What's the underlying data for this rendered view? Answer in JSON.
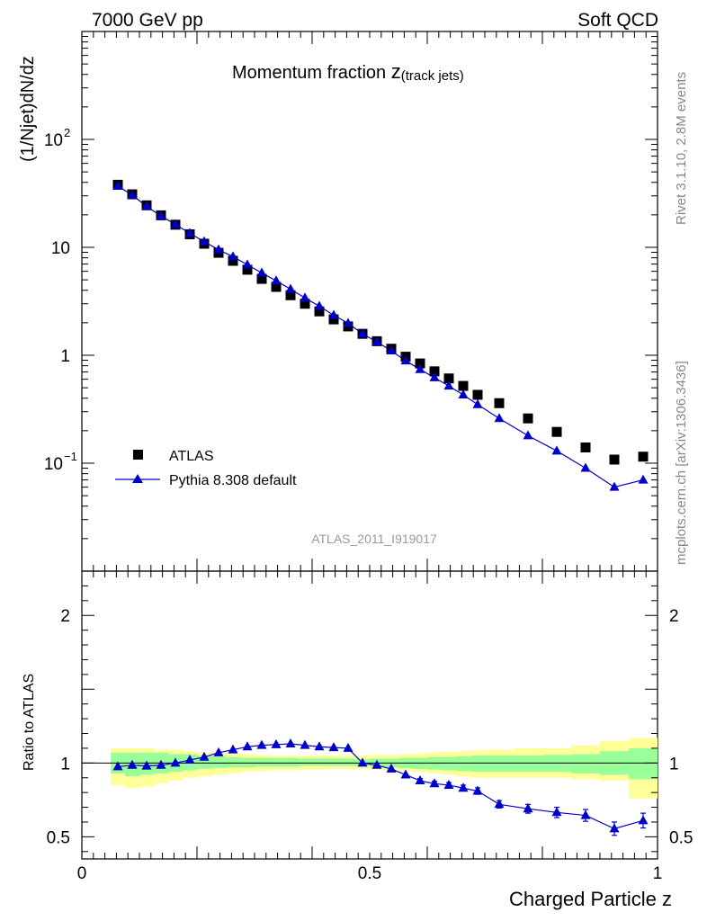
{
  "header": {
    "left": "7000 GeV pp",
    "right": "Soft QCD"
  },
  "side": {
    "rivet": "Rivet 3.1.10,  2.8M events",
    "mcplots": "mcplots.cern.ch [arXiv:1306.3436]"
  },
  "chart_data": {
    "type": "scatter",
    "title_main": "Momentum fraction ",
    "title_var": "z",
    "title_sub": "(track jets)",
    "ylabel": "(1/Njet)dN/dz",
    "xlabel": "Charged Particle z",
    "watermark": "ATLAS_2011_I919017",
    "xlim": [
      0,
      1
    ],
    "ylim_main": [
      0.01,
      1000
    ],
    "ylog_main": true,
    "ratio_ylabel": "Ratio to ATLAS",
    "ylim_ratio": [
      0.35,
      2.3
    ],
    "x_ticks": [
      "0",
      "0.5",
      "1"
    ],
    "y_ticks_main": [
      {
        "v": 0.1,
        "base": "10",
        "exp": "−1"
      },
      {
        "v": 1,
        "base": "1",
        "exp": ""
      },
      {
        "v": 10,
        "base": "10",
        "exp": ""
      },
      {
        "v": 100,
        "base": "10",
        "exp": "2"
      }
    ],
    "y_ticks_ratio": [
      {
        "v": 0.5,
        "label": "0.5"
      },
      {
        "v": 1,
        "label": "1"
      },
      {
        "v": 2,
        "label": "2"
      }
    ],
    "legend": {
      "position": "lower-left",
      "entries": [
        "ATLAS",
        "Pythia 8.308 default"
      ]
    },
    "colors": {
      "data": "#000000",
      "mc": "#0000cc",
      "band_inner": "#99ff99",
      "band_outer": "#ffff99"
    },
    "x_edges": [
      0.05,
      0.075,
      0.1,
      0.125,
      0.15,
      0.175,
      0.2,
      0.225,
      0.25,
      0.275,
      0.3,
      0.325,
      0.35,
      0.375,
      0.4,
      0.425,
      0.45,
      0.475,
      0.5,
      0.525,
      0.55,
      0.575,
      0.6,
      0.625,
      0.65,
      0.675,
      0.7,
      0.75,
      0.8,
      0.85,
      0.9,
      0.95,
      1.0
    ],
    "series": [
      {
        "name": "ATLAS",
        "x": [
          0.0625,
          0.0875,
          0.1125,
          0.1375,
          0.1625,
          0.1875,
          0.2125,
          0.2375,
          0.2625,
          0.2875,
          0.3125,
          0.3375,
          0.3625,
          0.3875,
          0.4125,
          0.4375,
          0.4625,
          0.4875,
          0.5125,
          0.5375,
          0.5625,
          0.5875,
          0.6125,
          0.6375,
          0.6625,
          0.6875,
          0.725,
          0.775,
          0.825,
          0.875,
          0.925,
          0.975
        ],
        "y": [
          38,
          31,
          24.5,
          19.8,
          16.2,
          13.2,
          10.8,
          8.9,
          7.5,
          6.2,
          5.1,
          4.3,
          3.6,
          3.0,
          2.55,
          2.15,
          1.85,
          1.58,
          1.35,
          1.15,
          0.97,
          0.84,
          0.71,
          0.61,
          0.52,
          0.43,
          0.36,
          0.26,
          0.195,
          0.14,
          0.108,
          0.115
        ]
      },
      {
        "name": "Pythia 8.308 default",
        "x": [
          0.0625,
          0.0875,
          0.1125,
          0.1375,
          0.1625,
          0.1875,
          0.2125,
          0.2375,
          0.2625,
          0.2875,
          0.3125,
          0.3375,
          0.3625,
          0.3875,
          0.4125,
          0.4375,
          0.4625,
          0.4875,
          0.5125,
          0.5375,
          0.5625,
          0.5875,
          0.6125,
          0.6375,
          0.6625,
          0.6875,
          0.725,
          0.775,
          0.825,
          0.875,
          0.925,
          0.975
        ],
        "y": [
          37,
          30.5,
          24,
          19.5,
          16.3,
          13.5,
          11.3,
          9.5,
          8.2,
          6.9,
          5.8,
          4.9,
          4.1,
          3.4,
          2.85,
          2.35,
          1.98,
          1.58,
          1.33,
          1.1,
          0.89,
          0.74,
          0.62,
          0.52,
          0.43,
          0.35,
          0.26,
          0.18,
          0.13,
          0.09,
          0.06,
          0.07
        ],
        "ratio": [
          0.975,
          0.985,
          0.98,
          0.985,
          1.0,
          1.02,
          1.04,
          1.07,
          1.09,
          1.11,
          1.12,
          1.125,
          1.13,
          1.12,
          1.11,
          1.105,
          1.1,
          1.0,
          0.985,
          0.96,
          0.92,
          0.88,
          0.86,
          0.85,
          0.83,
          0.81,
          0.72,
          0.69,
          0.665,
          0.645,
          0.555,
          0.61
        ],
        "ratio_err": [
          0.01,
          0.01,
          0.01,
          0.01,
          0.01,
          0.01,
          0.01,
          0.01,
          0.01,
          0.01,
          0.01,
          0.01,
          0.01,
          0.01,
          0.01,
          0.01,
          0.01,
          0.01,
          0.01,
          0.01,
          0.012,
          0.014,
          0.016,
          0.018,
          0.02,
          0.022,
          0.025,
          0.03,
          0.035,
          0.04,
          0.045,
          0.05
        ]
      }
    ],
    "band_inner": [
      [
        0.93,
        1.07
      ],
      [
        0.91,
        1.07
      ],
      [
        0.92,
        1.07
      ],
      [
        0.93,
        1.07
      ],
      [
        0.94,
        1.06
      ],
      [
        0.95,
        1.06
      ],
      [
        0.96,
        1.05
      ],
      [
        0.965,
        1.045
      ],
      [
        0.97,
        1.04
      ],
      [
        0.97,
        1.035
      ],
      [
        0.975,
        1.035
      ],
      [
        0.975,
        1.035
      ],
      [
        0.975,
        1.035
      ],
      [
        0.98,
        1.03
      ],
      [
        0.98,
        1.03
      ],
      [
        0.98,
        1.03
      ],
      [
        0.98,
        1.03
      ],
      [
        0.98,
        1.025
      ],
      [
        0.975,
        1.03
      ],
      [
        0.97,
        1.03
      ],
      [
        0.965,
        1.035
      ],
      [
        0.96,
        1.035
      ],
      [
        0.955,
        1.04
      ],
      [
        0.95,
        1.04
      ],
      [
        0.945,
        1.045
      ],
      [
        0.94,
        1.05
      ],
      [
        0.94,
        1.05
      ],
      [
        0.94,
        1.05
      ],
      [
        0.94,
        1.055
      ],
      [
        0.93,
        1.06
      ],
      [
        0.92,
        1.08
      ],
      [
        0.89,
        1.1
      ]
    ],
    "band_outer": [
      [
        0.85,
        1.1
      ],
      [
        0.83,
        1.1
      ],
      [
        0.84,
        1.1
      ],
      [
        0.86,
        1.09
      ],
      [
        0.88,
        1.09
      ],
      [
        0.9,
        1.08
      ],
      [
        0.91,
        1.07
      ],
      [
        0.92,
        1.07
      ],
      [
        0.93,
        1.06
      ],
      [
        0.94,
        1.06
      ],
      [
        0.945,
        1.055
      ],
      [
        0.95,
        1.05
      ],
      [
        0.95,
        1.05
      ],
      [
        0.955,
        1.05
      ],
      [
        0.955,
        1.05
      ],
      [
        0.96,
        1.05
      ],
      [
        0.96,
        1.05
      ],
      [
        0.96,
        1.05
      ],
      [
        0.955,
        1.055
      ],
      [
        0.95,
        1.055
      ],
      [
        0.945,
        1.06
      ],
      [
        0.94,
        1.065
      ],
      [
        0.93,
        1.07
      ],
      [
        0.92,
        1.075
      ],
      [
        0.91,
        1.08
      ],
      [
        0.9,
        1.085
      ],
      [
        0.9,
        1.09
      ],
      [
        0.9,
        1.1
      ],
      [
        0.9,
        1.1
      ],
      [
        0.89,
        1.12
      ],
      [
        0.88,
        1.15
      ],
      [
        0.76,
        1.17
      ]
    ]
  }
}
